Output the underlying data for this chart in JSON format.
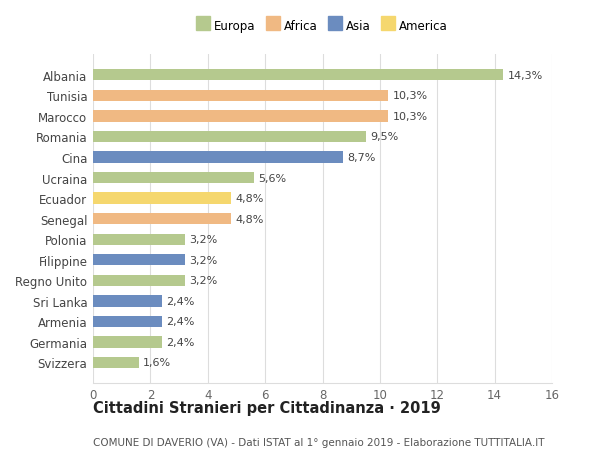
{
  "countries": [
    "Albania",
    "Tunisia",
    "Marocco",
    "Romania",
    "Cina",
    "Ucraina",
    "Ecuador",
    "Senegal",
    "Polonia",
    "Filippine",
    "Regno Unito",
    "Sri Lanka",
    "Armenia",
    "Germania",
    "Svizzera"
  ],
  "values": [
    14.3,
    10.3,
    10.3,
    9.5,
    8.7,
    5.6,
    4.8,
    4.8,
    3.2,
    3.2,
    3.2,
    2.4,
    2.4,
    2.4,
    1.6
  ],
  "labels": [
    "14,3%",
    "10,3%",
    "10,3%",
    "9,5%",
    "8,7%",
    "5,6%",
    "4,8%",
    "4,8%",
    "3,2%",
    "3,2%",
    "3,2%",
    "2,4%",
    "2,4%",
    "2,4%",
    "1,6%"
  ],
  "continents": [
    "Europa",
    "Africa",
    "Africa",
    "Europa",
    "Asia",
    "Europa",
    "America",
    "Africa",
    "Europa",
    "Asia",
    "Europa",
    "Asia",
    "Asia",
    "Europa",
    "Europa"
  ],
  "continent_colors": {
    "Europa": "#b5c98e",
    "Africa": "#f0b983",
    "Asia": "#6b8cbf",
    "America": "#f5d76e"
  },
  "legend_order": [
    "Europa",
    "Africa",
    "Asia",
    "America"
  ],
  "title": "Cittadini Stranieri per Cittadinanza · 2019",
  "subtitle": "COMUNE DI DAVERIO (VA) - Dati ISTAT al 1° gennaio 2019 - Elaborazione TUTTITALIA.IT",
  "xlim": [
    0,
    16
  ],
  "xticks": [
    0,
    2,
    4,
    6,
    8,
    10,
    12,
    14,
    16
  ],
  "background_color": "#ffffff",
  "grid_color": "#dddddd",
  "bar_height": 0.55,
  "title_fontsize": 10.5,
  "subtitle_fontsize": 7.5,
  "tick_fontsize": 8.5,
  "label_fontsize": 8,
  "legend_fontsize": 8.5
}
